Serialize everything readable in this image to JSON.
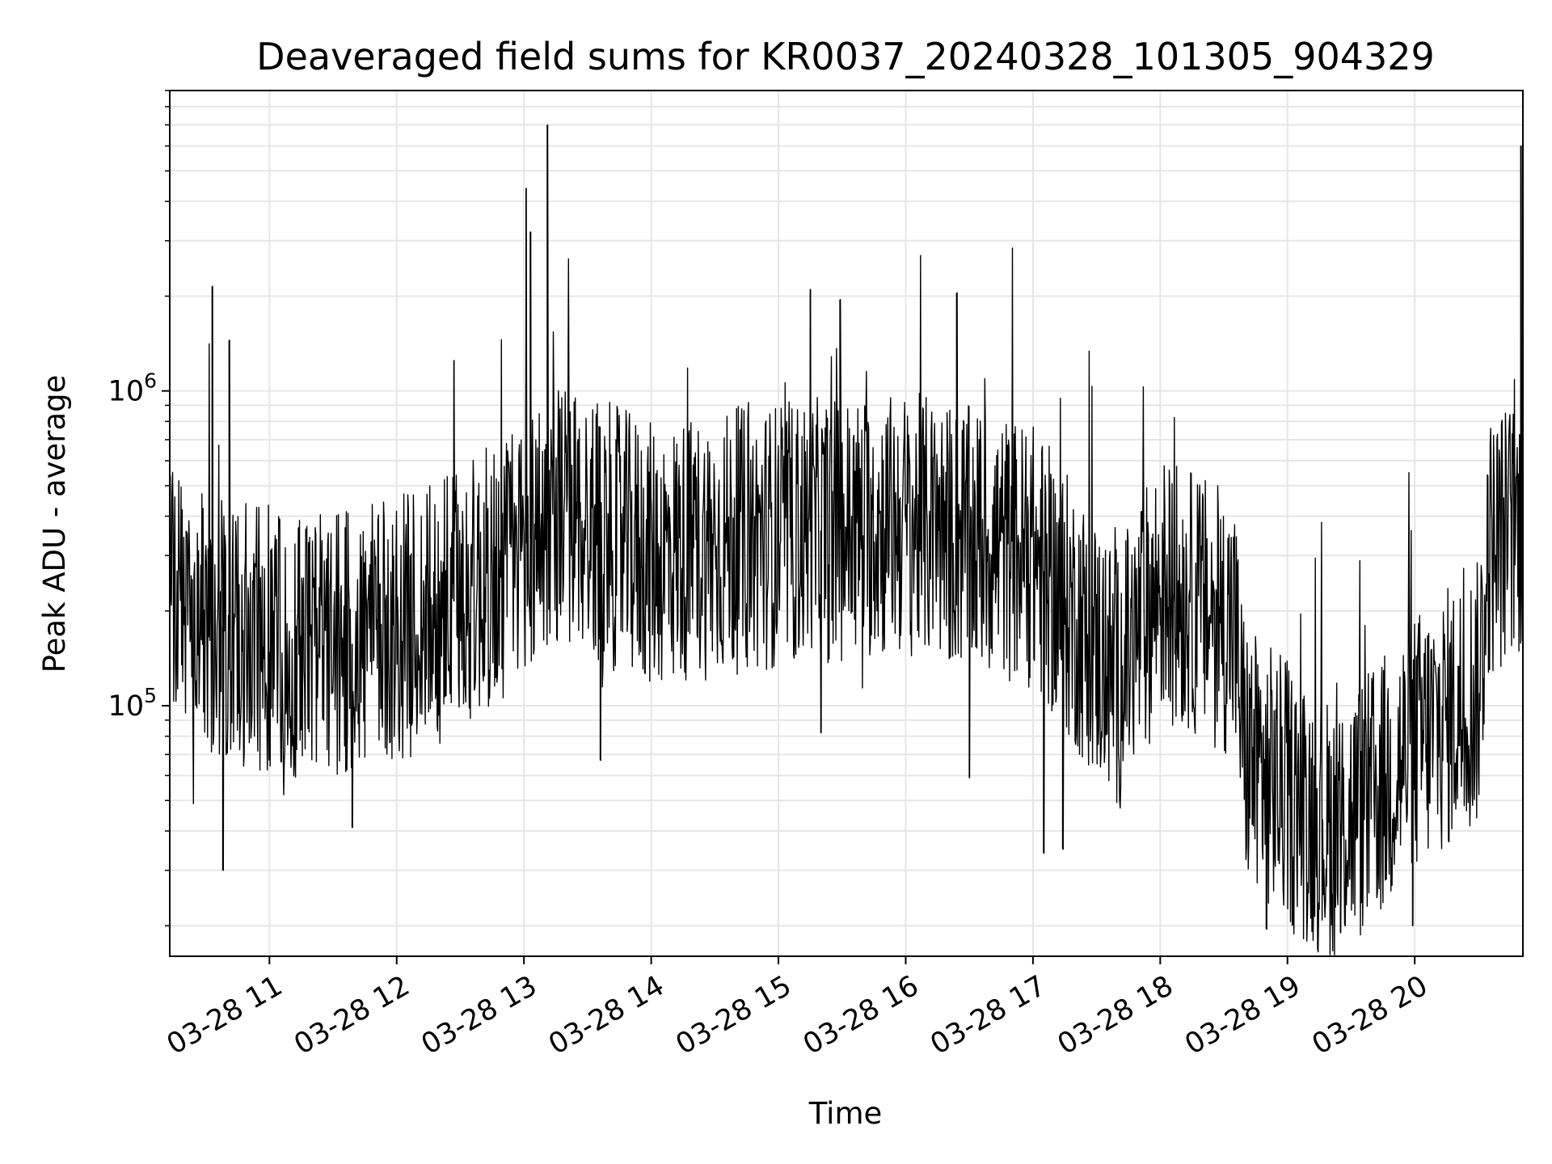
{
  "chart_data": {
    "type": "line",
    "title": "Deaveraged field sums for KR0037_20240328_101305_904329",
    "xlabel": "Time",
    "ylabel": "Peak ADU - average",
    "y_scale": "log",
    "xlim": [
      "2024-03-28 10:13",
      "2024-03-28 20:51"
    ],
    "ylim": [
      16000,
      9000000
    ],
    "grid": true,
    "line_color": "#000000",
    "grid_color": "#e6e6e6",
    "x_ticks": [
      {
        "t": "2024-03-28 11:00",
        "label": "03-28 11"
      },
      {
        "t": "2024-03-28 12:00",
        "label": "03-28 12"
      },
      {
        "t": "2024-03-28 13:00",
        "label": "03-28 13"
      },
      {
        "t": "2024-03-28 14:00",
        "label": "03-28 14"
      },
      {
        "t": "2024-03-28 15:00",
        "label": "03-28 15"
      },
      {
        "t": "2024-03-28 16:00",
        "label": "03-28 16"
      },
      {
        "t": "2024-03-28 17:00",
        "label": "03-28 17"
      },
      {
        "t": "2024-03-28 18:00",
        "label": "03-28 18"
      },
      {
        "t": "2024-03-28 19:00",
        "label": "03-28 19"
      },
      {
        "t": "2024-03-28 20:00",
        "label": "03-28 20"
      }
    ],
    "y_ticks": [
      {
        "value": 100000,
        "base": "10",
        "exp": "5"
      },
      {
        "value": 1000000,
        "base": "10",
        "exp": "6"
      }
    ],
    "trend": [
      {
        "t": "2024-03-28 10:13",
        "y": 210000
      },
      {
        "t": "2024-03-28 10:45",
        "y": 170000
      },
      {
        "t": "2024-03-28 11:30",
        "y": 150000
      },
      {
        "t": "2024-03-28 12:15",
        "y": 190000
      },
      {
        "t": "2024-03-28 12:50",
        "y": 270000
      },
      {
        "t": "2024-03-28 13:15",
        "y": 420000
      },
      {
        "t": "2024-03-28 14:00",
        "y": 300000
      },
      {
        "t": "2024-03-28 15:00",
        "y": 350000
      },
      {
        "t": "2024-03-28 16:00",
        "y": 380000
      },
      {
        "t": "2024-03-28 17:00",
        "y": 300000
      },
      {
        "t": "2024-03-28 17:40",
        "y": 120000
      },
      {
        "t": "2024-03-28 18:00",
        "y": 240000
      },
      {
        "t": "2024-03-28 18:35",
        "y": 180000
      },
      {
        "t": "2024-03-28 18:40",
        "y": 70000
      },
      {
        "t": "2024-03-28 19:20",
        "y": 40000
      },
      {
        "t": "2024-03-28 19:40",
        "y": 50000
      },
      {
        "t": "2024-03-28 20:00",
        "y": 75000
      },
      {
        "t": "2024-03-28 20:30",
        "y": 110000
      },
      {
        "t": "2024-03-28 20:35",
        "y": 320000
      },
      {
        "t": "2024-03-28 20:51",
        "y": 380000
      }
    ],
    "spikes": [
      {
        "t": "2024-03-28 10:33",
        "y": 2150000
      },
      {
        "t": "2024-03-28 10:38",
        "y": 30000
      },
      {
        "t": "2024-03-28 10:41",
        "y": 1450000
      },
      {
        "t": "2024-03-28 11:39",
        "y": 41000
      },
      {
        "t": "2024-03-28 12:27",
        "y": 1250000
      },
      {
        "t": "2024-03-28 13:01",
        "y": 4400000
      },
      {
        "t": "2024-03-28 13:03",
        "y": 3200000
      },
      {
        "t": "2024-03-28 13:11",
        "y": 7000000
      },
      {
        "t": "2024-03-28 13:36",
        "y": 67000
      },
      {
        "t": "2024-03-28 15:15",
        "y": 2100000
      },
      {
        "t": "2024-03-28 15:20",
        "y": 82000
      },
      {
        "t": "2024-03-28 15:29",
        "y": 1950000
      },
      {
        "t": "2024-03-28 16:24",
        "y": 2050000
      },
      {
        "t": "2024-03-28 16:30",
        "y": 59000
      },
      {
        "t": "2024-03-28 17:05",
        "y": 34000
      },
      {
        "t": "2024-03-28 17:14",
        "y": 35000
      },
      {
        "t": "2024-03-28 18:50",
        "y": 19500
      },
      {
        "t": "2024-03-28 19:25",
        "y": 19000
      },
      {
        "t": "2024-03-28 19:59",
        "y": 20000
      },
      {
        "t": "2024-03-28 20:50",
        "y": 6000000
      }
    ]
  }
}
